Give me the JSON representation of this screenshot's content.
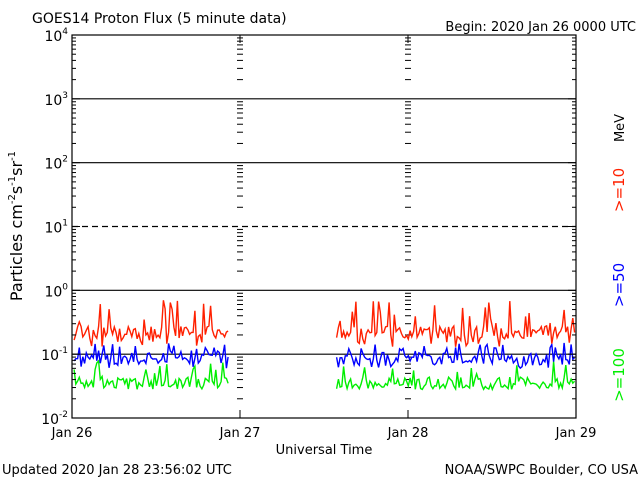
{
  "chart_data": {
    "type": "line",
    "title": "GOES14 Proton Flux (5 minute data)",
    "begin_label": "Begin: 2020 Jan 26 0000 UTC",
    "xlabel": "Universal Time",
    "ylabel_parts": [
      "Particles cm",
      "-2",
      "s",
      "-1",
      "sr",
      "-1"
    ],
    "y_scale": "log",
    "ylim": [
      0.01,
      10000
    ],
    "y_ticks": [
      {
        "value": 0.01,
        "base": "10",
        "exp": "-2"
      },
      {
        "value": 0.1,
        "base": "10",
        "exp": "-1"
      },
      {
        "value": 1,
        "base": "10",
        "exp": "0"
      },
      {
        "value": 10,
        "base": "10",
        "exp": "1"
      },
      {
        "value": 100,
        "base": "10",
        "exp": "2"
      },
      {
        "value": 1000,
        "base": "10",
        "exp": "3"
      },
      {
        "value": 10000,
        "base": "10",
        "exp": "4"
      }
    ],
    "threshold_lines": [
      {
        "value": 0.1,
        "style": "solid"
      },
      {
        "value": 1,
        "style": "solid"
      },
      {
        "value": 10,
        "style": "dashed"
      },
      {
        "value": 100,
        "style": "solid"
      },
      {
        "value": 1000,
        "style": "solid"
      }
    ],
    "xlim_hours": [
      0,
      72
    ],
    "x_ticks": [
      {
        "hour": 0,
        "label": "Jan 26"
      },
      {
        "hour": 24,
        "label": "Jan 27"
      },
      {
        "hour": 48,
        "label": "Jan 28"
      },
      {
        "hour": 72,
        "label": "Jan 29"
      }
    ],
    "data_gap_hours": [
      22.3,
      37.8
    ],
    "unit_label": "MeV",
    "series": [
      {
        "name": ">=10",
        "color": "#ff2000",
        "typical": 0.22,
        "min": 0.13,
        "max": 0.7
      },
      {
        "name": ">=50",
        "color": "#0000ff",
        "typical": 0.085,
        "min": 0.06,
        "max": 0.15
      },
      {
        "name": ">=100",
        "color": "#00ee00",
        "typical": 0.035,
        "min": 0.028,
        "max": 0.08
      }
    ]
  },
  "footer": {
    "updated": "Updated 2020 Jan 28 23:56:02 UTC",
    "credit": "NOAA/SWPC Boulder, CO USA"
  }
}
